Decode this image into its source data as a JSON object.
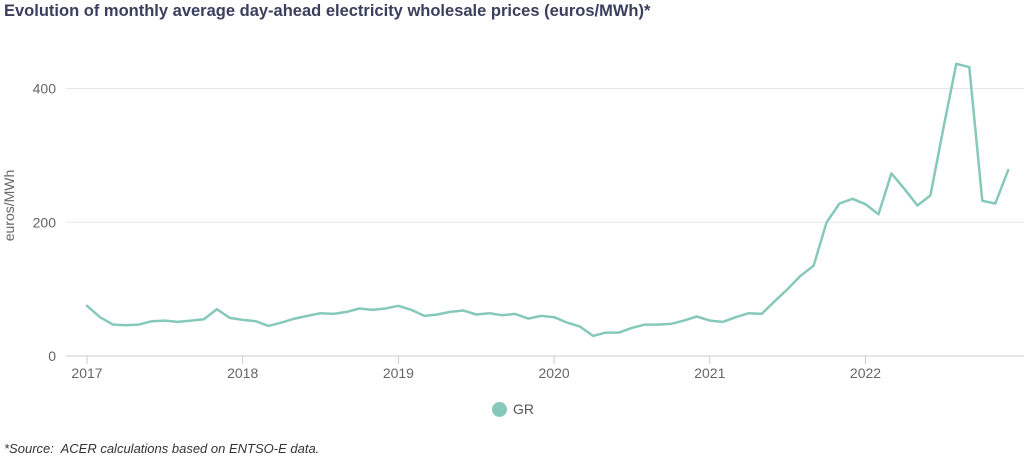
{
  "title": "Evolution of monthly average day-ahead electricity wholesale prices (euros/MWh)*",
  "source": "*Source:  ACER calculations based on ENTSO-E data.",
  "colors": {
    "series": "#86c9bb",
    "grid": "#e6e6e6",
    "title": "#3a3f5c"
  },
  "chart_data": {
    "type": "line",
    "ylabel": "euros/MWh",
    "xlabel": "",
    "ylim": [
      0,
      480
    ],
    "yticks": [
      0,
      200,
      400
    ],
    "xticks": [
      "2017",
      "2018",
      "2019",
      "2020",
      "2021",
      "2022"
    ],
    "grid": true,
    "legend_position": "bottom",
    "x": [
      "2017-01",
      "2017-02",
      "2017-03",
      "2017-04",
      "2017-05",
      "2017-06",
      "2017-07",
      "2017-08",
      "2017-09",
      "2017-10",
      "2017-11",
      "2017-12",
      "2018-01",
      "2018-02",
      "2018-03",
      "2018-04",
      "2018-05",
      "2018-06",
      "2018-07",
      "2018-08",
      "2018-09",
      "2018-10",
      "2018-11",
      "2018-12",
      "2019-01",
      "2019-02",
      "2019-03",
      "2019-04",
      "2019-05",
      "2019-06",
      "2019-07",
      "2019-08",
      "2019-09",
      "2019-10",
      "2019-11",
      "2019-12",
      "2020-01",
      "2020-02",
      "2020-03",
      "2020-04",
      "2020-05",
      "2020-06",
      "2020-07",
      "2020-08",
      "2020-09",
      "2020-10",
      "2020-11",
      "2020-12",
      "2021-01",
      "2021-02",
      "2021-03",
      "2021-04",
      "2021-05",
      "2021-06",
      "2021-07",
      "2021-08",
      "2021-09",
      "2021-10",
      "2021-11",
      "2021-12",
      "2022-01",
      "2022-02",
      "2022-03",
      "2022-04",
      "2022-05",
      "2022-06",
      "2022-07",
      "2022-08",
      "2022-09",
      "2022-10",
      "2022-11",
      "2022-12"
    ],
    "series": [
      {
        "name": "GR",
        "values": [
          75,
          58,
          47,
          46,
          47,
          52,
          53,
          51,
          53,
          55,
          70,
          57,
          54,
          52,
          45,
          50,
          56,
          60,
          64,
          63,
          66,
          71,
          69,
          71,
          75,
          69,
          60,
          62,
          66,
          68,
          62,
          64,
          61,
          63,
          56,
          60,
          58,
          50,
          44,
          30,
          35,
          35,
          42,
          47,
          47,
          48,
          53,
          59,
          53,
          51,
          58,
          64,
          63,
          82,
          100,
          120,
          135,
          200,
          228,
          235,
          227,
          212,
          273,
          250,
          225,
          240,
          340,
          437,
          432,
          232,
          228,
          278
        ]
      }
    ]
  }
}
